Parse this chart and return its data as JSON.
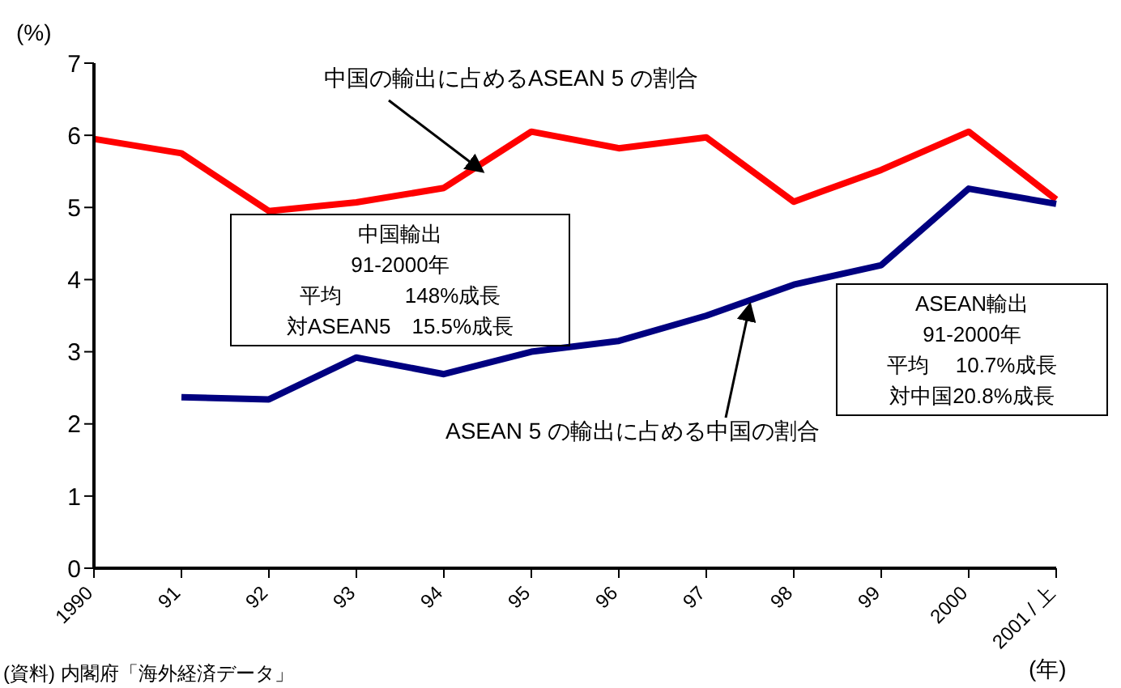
{
  "chart_data": {
    "type": "line",
    "ylabel": "(%)",
    "xlabel": "(年)",
    "categories": [
      "1990",
      "91",
      "92",
      "93",
      "94",
      "95",
      "96",
      "97",
      "98",
      "99",
      "2000",
      "2001 / 上"
    ],
    "series": [
      {
        "name": "中国の輸出に占めるASEAN 5 の割合",
        "color": "#ff0000",
        "values": [
          5.95,
          5.75,
          4.95,
          5.07,
          5.27,
          6.05,
          5.82,
          5.97,
          5.08,
          5.52,
          6.05,
          5.11
        ]
      },
      {
        "name": "ASEAN 5 の輸出に占める中国の割合",
        "color": "#000080",
        "values": [
          null,
          2.37,
          2.34,
          2.92,
          2.69,
          3.0,
          3.15,
          3.5,
          3.93,
          4.2,
          5.26,
          5.05
        ]
      }
    ],
    "ylim": [
      0,
      7
    ],
    "yticks": [
      0,
      1,
      2,
      3,
      4,
      5,
      6,
      7
    ],
    "grid": false,
    "legend": false,
    "marker": "none",
    "line_style": "solid",
    "annotations": [
      "中国輸出",
      "91-2000年",
      "平均　　　148%成長",
      "対ASEAN5　15.5%成長",
      "ASEAN輸出",
      "91-2000年",
      "平均　 10.7%成長",
      "対中国20.8%成長",
      "(資料) 内閣府「海外経済データ」"
    ]
  }
}
